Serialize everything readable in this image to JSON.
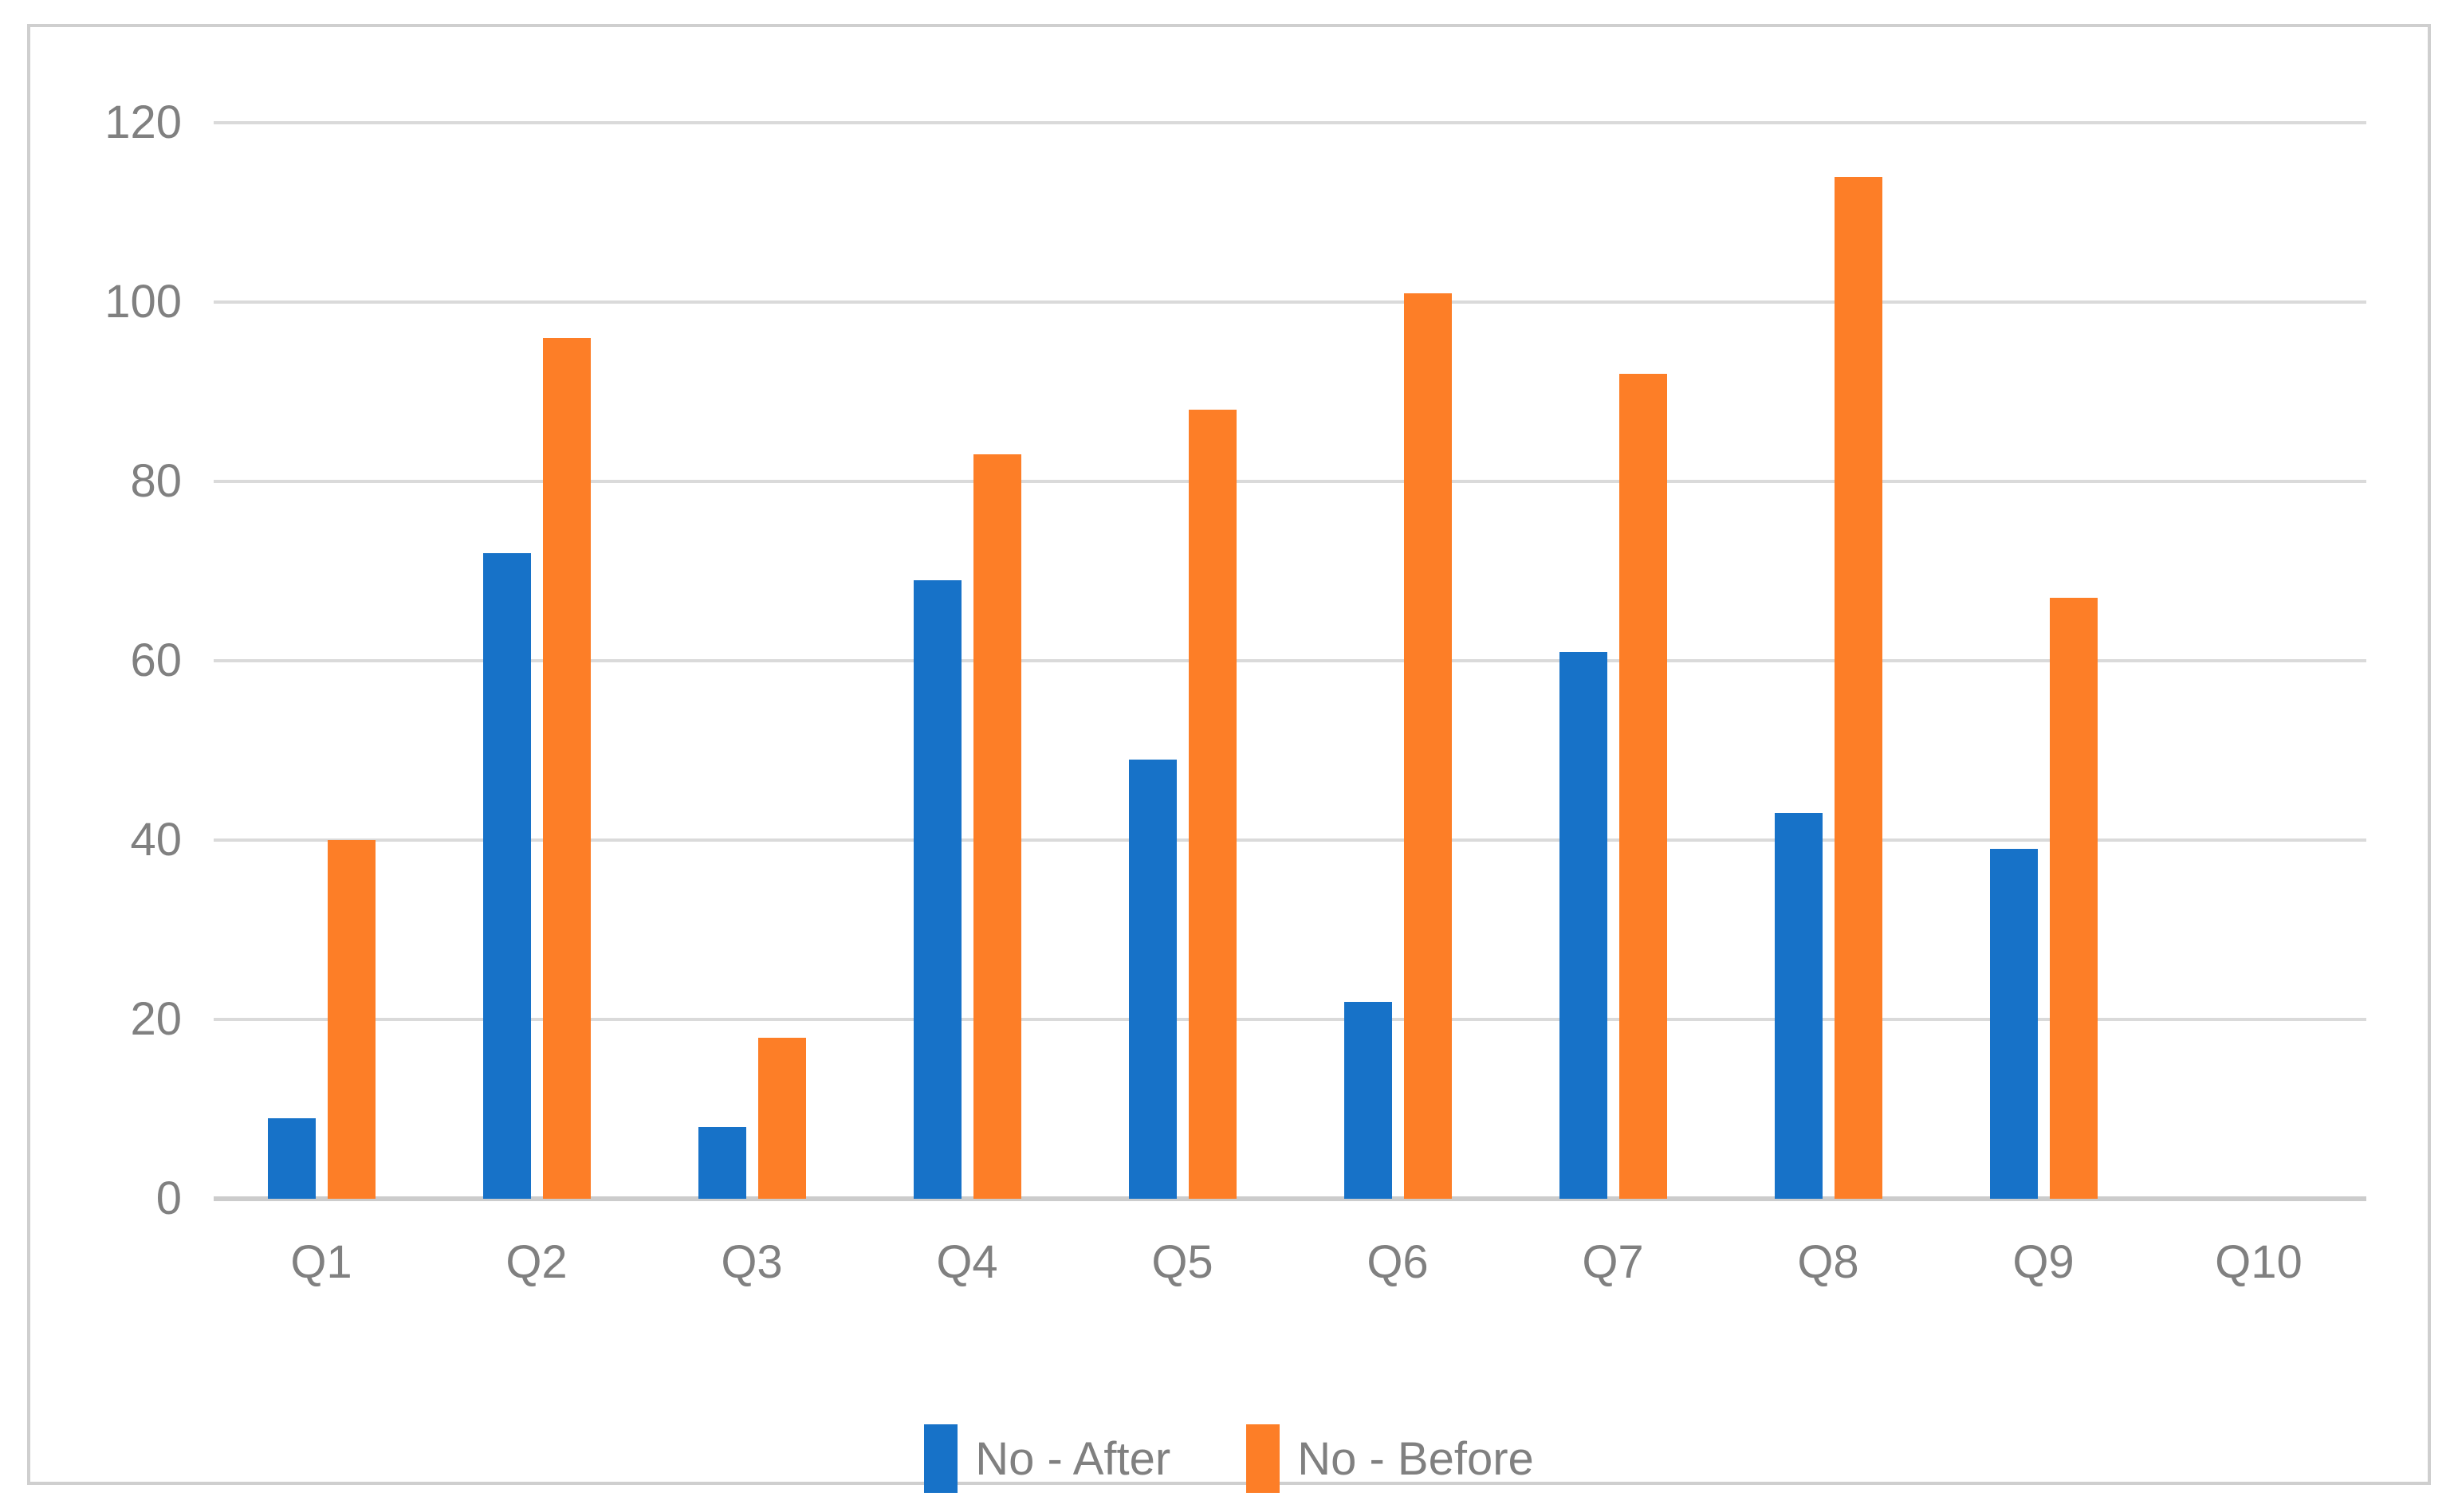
{
  "chart_data": {
    "type": "bar",
    "title": "",
    "xlabel": "",
    "ylabel": "",
    "categories": [
      "Q1",
      "Q2",
      "Q3",
      "Q4",
      "Q5",
      "Q6",
      "Q7",
      "Q8",
      "Q9",
      "Q10"
    ],
    "series": [
      {
        "name": "No - After",
        "color": "#1772C8",
        "values": [
          9,
          72,
          8,
          69,
          49,
          22,
          61,
          43,
          39,
          0
        ]
      },
      {
        "name": "No - Before",
        "color": "#FD7E27",
        "values": [
          40,
          96,
          18,
          83,
          88,
          101,
          92,
          114,
          67,
          0
        ]
      }
    ],
    "ylim": [
      0,
      120
    ],
    "yticks": [
      0,
      20,
      40,
      60,
      80,
      100,
      120
    ],
    "grid": true,
    "legend_position": "bottom"
  },
  "style": {
    "gridline_color": "#dadada",
    "axis_line_color": "#cccccc",
    "label_color": "#808080",
    "frame_border_color": "#cfcfcf",
    "background_color": "#ffffff"
  }
}
